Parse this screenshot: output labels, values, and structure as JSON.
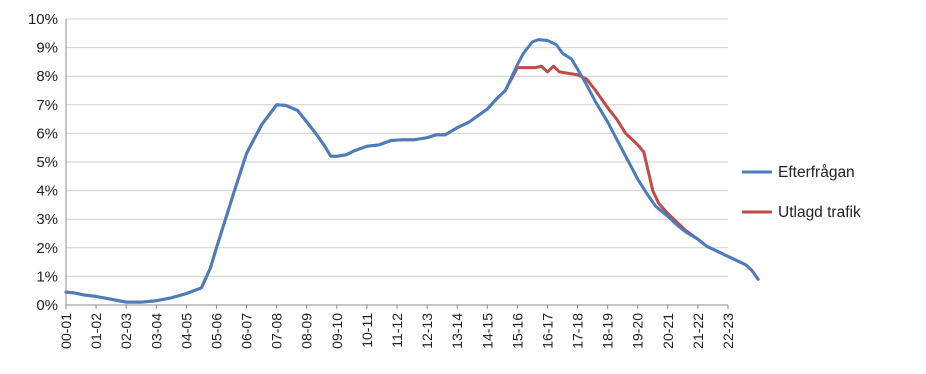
{
  "chart_data": {
    "type": "line",
    "ylim": [
      0,
      10
    ],
    "y_ticks": [
      "0%",
      "1%",
      "2%",
      "3%",
      "4%",
      "5%",
      "6%",
      "7%",
      "8%",
      "9%",
      "10%"
    ],
    "categories": [
      "00-01",
      "01-02",
      "02-03",
      "03-04",
      "04-05",
      "05-06",
      "06-07",
      "07-08",
      "08-09",
      "09-10",
      "10-11",
      "11-12",
      "12-13",
      "13-14",
      "14-15",
      "15-16",
      "16-17",
      "17-18",
      "18-19",
      "19-20",
      "20-21",
      "21-22",
      "22-23"
    ],
    "grid": true,
    "legend_position": "right",
    "series": [
      {
        "name": "Efterfrågan",
        "color": "#4a7ebb",
        "points": [
          [
            0,
            0.45
          ],
          [
            0.3,
            0.42
          ],
          [
            0.6,
            0.35
          ],
          [
            1.0,
            0.3
          ],
          [
            1.5,
            0.2
          ],
          [
            2.0,
            0.1
          ],
          [
            2.5,
            0.1
          ],
          [
            3.0,
            0.15
          ],
          [
            3.5,
            0.25
          ],
          [
            4.0,
            0.4
          ],
          [
            4.5,
            0.6
          ],
          [
            4.8,
            1.3
          ],
          [
            5.0,
            2.0
          ],
          [
            5.3,
            3.0
          ],
          [
            5.6,
            4.0
          ],
          [
            6.0,
            5.3
          ],
          [
            6.5,
            6.3
          ],
          [
            7.0,
            7.0
          ],
          [
            7.3,
            6.98
          ],
          [
            7.7,
            6.8
          ],
          [
            8.0,
            6.4
          ],
          [
            8.3,
            6.0
          ],
          [
            8.6,
            5.55
          ],
          [
            8.8,
            5.2
          ],
          [
            9.0,
            5.2
          ],
          [
            9.3,
            5.25
          ],
          [
            9.6,
            5.4
          ],
          [
            10.0,
            5.55
          ],
          [
            10.4,
            5.6
          ],
          [
            10.8,
            5.75
          ],
          [
            11.2,
            5.78
          ],
          [
            11.6,
            5.78
          ],
          [
            12.0,
            5.85
          ],
          [
            12.3,
            5.95
          ],
          [
            12.6,
            5.95
          ],
          [
            13.0,
            6.2
          ],
          [
            13.4,
            6.4
          ],
          [
            13.8,
            6.7
          ],
          [
            14.0,
            6.85
          ],
          [
            14.3,
            7.2
          ],
          [
            14.6,
            7.5
          ],
          [
            15.0,
            8.4
          ],
          [
            15.2,
            8.8
          ],
          [
            15.5,
            9.2
          ],
          [
            15.7,
            9.28
          ],
          [
            16.0,
            9.25
          ],
          [
            16.3,
            9.1
          ],
          [
            16.5,
            8.8
          ],
          [
            16.8,
            8.6
          ],
          [
            17.0,
            8.25
          ],
          [
            17.3,
            7.7
          ],
          [
            17.6,
            7.1
          ],
          [
            18.0,
            6.4
          ],
          [
            18.3,
            5.8
          ],
          [
            18.7,
            5.0
          ],
          [
            19.0,
            4.4
          ],
          [
            19.3,
            3.9
          ],
          [
            19.6,
            3.45
          ],
          [
            20.0,
            3.1
          ],
          [
            20.3,
            2.8
          ],
          [
            20.6,
            2.55
          ],
          [
            21.0,
            2.3
          ],
          [
            21.3,
            2.05
          ],
          [
            21.6,
            1.9
          ],
          [
            22.0,
            1.7
          ],
          [
            22.3,
            1.55
          ],
          [
            22.6,
            1.4
          ],
          [
            22.8,
            1.2
          ],
          [
            23.0,
            0.9
          ]
        ]
      },
      {
        "name": "Utlagd trafik",
        "color": "#be4b48",
        "points": [
          [
            0,
            0.45
          ],
          [
            0.3,
            0.42
          ],
          [
            0.6,
            0.35
          ],
          [
            1.0,
            0.3
          ],
          [
            1.5,
            0.2
          ],
          [
            2.0,
            0.1
          ],
          [
            2.5,
            0.1
          ],
          [
            3.0,
            0.15
          ],
          [
            3.5,
            0.25
          ],
          [
            4.0,
            0.4
          ],
          [
            4.5,
            0.6
          ],
          [
            4.8,
            1.3
          ],
          [
            5.0,
            2.0
          ],
          [
            5.3,
            3.0
          ],
          [
            5.6,
            4.0
          ],
          [
            6.0,
            5.3
          ],
          [
            6.5,
            6.3
          ],
          [
            7.0,
            7.0
          ],
          [
            7.3,
            6.98
          ],
          [
            7.7,
            6.8
          ],
          [
            8.0,
            6.4
          ],
          [
            8.3,
            6.0
          ],
          [
            8.6,
            5.55
          ],
          [
            8.8,
            5.2
          ],
          [
            9.0,
            5.2
          ],
          [
            9.3,
            5.25
          ],
          [
            9.6,
            5.4
          ],
          [
            10.0,
            5.55
          ],
          [
            10.4,
            5.6
          ],
          [
            10.8,
            5.75
          ],
          [
            11.2,
            5.78
          ],
          [
            11.6,
            5.78
          ],
          [
            12.0,
            5.85
          ],
          [
            12.3,
            5.95
          ],
          [
            12.6,
            5.95
          ],
          [
            13.0,
            6.2
          ],
          [
            13.4,
            6.4
          ],
          [
            13.8,
            6.7
          ],
          [
            14.0,
            6.85
          ],
          [
            14.3,
            7.2
          ],
          [
            14.6,
            7.5
          ],
          [
            15.0,
            8.3
          ],
          [
            15.3,
            8.3
          ],
          [
            15.6,
            8.3
          ],
          [
            15.8,
            8.35
          ],
          [
            16.0,
            8.15
          ],
          [
            16.2,
            8.35
          ],
          [
            16.4,
            8.15
          ],
          [
            16.7,
            8.1
          ],
          [
            17.0,
            8.05
          ],
          [
            17.3,
            7.9
          ],
          [
            17.6,
            7.5
          ],
          [
            18.0,
            6.9
          ],
          [
            18.3,
            6.5
          ],
          [
            18.6,
            6.0
          ],
          [
            19.0,
            5.6
          ],
          [
            19.2,
            5.35
          ],
          [
            19.5,
            4.0
          ],
          [
            19.7,
            3.55
          ],
          [
            20.0,
            3.2
          ],
          [
            20.3,
            2.9
          ],
          [
            20.6,
            2.6
          ],
          [
            21.0,
            2.3
          ],
          [
            21.3,
            2.05
          ],
          [
            21.6,
            1.9
          ],
          [
            22.0,
            1.7
          ],
          [
            22.3,
            1.55
          ],
          [
            22.6,
            1.4
          ],
          [
            22.8,
            1.2
          ],
          [
            23.0,
            0.9
          ]
        ]
      }
    ]
  }
}
